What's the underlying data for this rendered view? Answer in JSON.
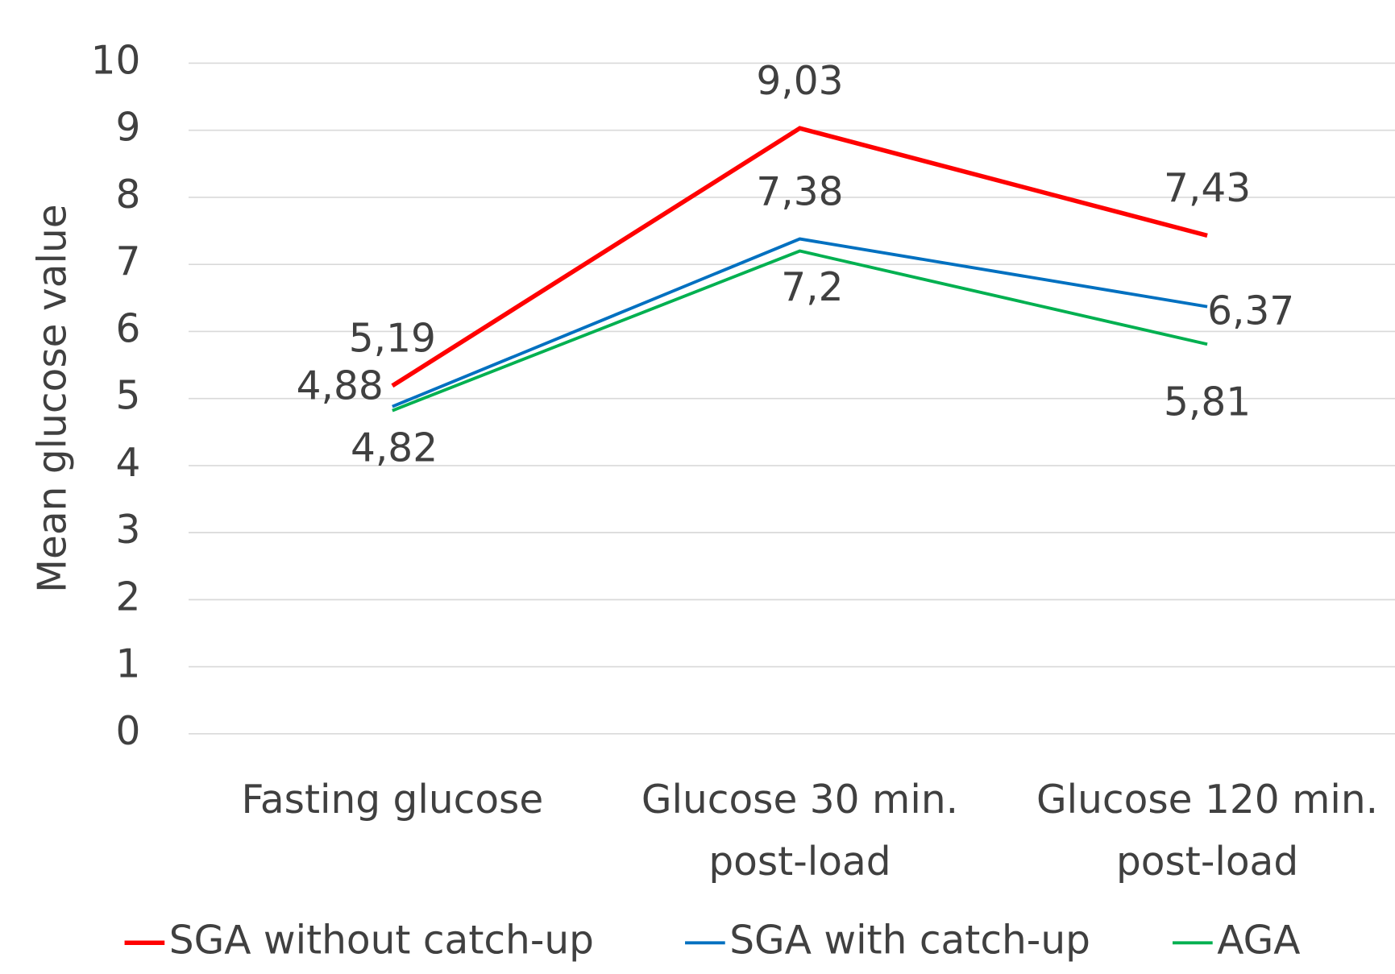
{
  "chart_data": {
    "type": "line",
    "y_label": "Mean glucose value",
    "categories": [
      "Fasting glucose",
      "Glucose 30 min.\npost-load",
      "Glucose 120 min.\npost-load"
    ],
    "series": [
      {
        "name": "SGA without catch-up",
        "color": "#ff0000",
        "values": [
          5.19,
          9.03,
          7.43
        ],
        "value_labels": [
          "5,19",
          "9,03",
          "7,43"
        ]
      },
      {
        "name": "SGA with catch-up",
        "color": "#0070c0",
        "values": [
          4.88,
          7.38,
          6.37
        ],
        "value_labels": [
          "4,88",
          "7,38",
          "6,37"
        ]
      },
      {
        "name": "AGA",
        "color": "#00b050",
        "values": [
          4.82,
          7.2,
          5.81
        ],
        "value_labels": [
          "4,82",
          "7,2",
          "5,81"
        ]
      }
    ],
    "ylim": [
      0,
      10
    ],
    "yticks": [
      0,
      1,
      2,
      3,
      4,
      5,
      6,
      7,
      8,
      9,
      10
    ],
    "grid": true,
    "legend": "bottom"
  }
}
